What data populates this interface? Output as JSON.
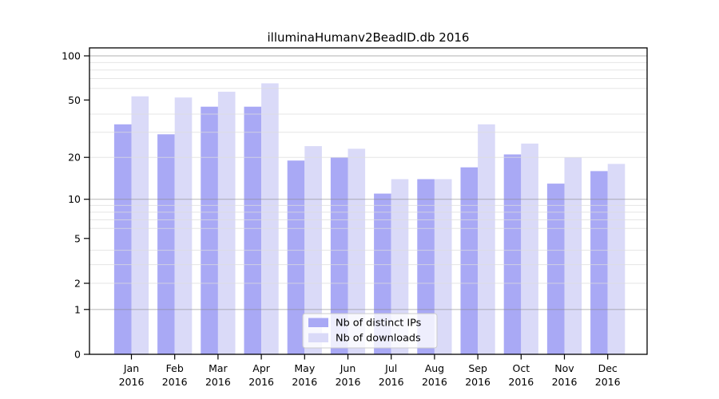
{
  "chart_data": {
    "type": "bar",
    "title": "illuminaHumanv2BeadID.db 2016",
    "x_ticks": [
      {
        "month": "Jan",
        "year": "2016"
      },
      {
        "month": "Feb",
        "year": "2016"
      },
      {
        "month": "Mar",
        "year": "2016"
      },
      {
        "month": "Apr",
        "year": "2016"
      },
      {
        "month": "May",
        "year": "2016"
      },
      {
        "month": "Jun",
        "year": "2016"
      },
      {
        "month": "Jul",
        "year": "2016"
      },
      {
        "month": "Aug",
        "year": "2016"
      },
      {
        "month": "Sep",
        "year": "2016"
      },
      {
        "month": "Oct",
        "year": "2016"
      },
      {
        "month": "Nov",
        "year": "2016"
      },
      {
        "month": "Dec",
        "year": "2016"
      }
    ],
    "series": [
      {
        "name": "Nb of distinct IPs",
        "color": "#a9a9f5",
        "values": [
          34,
          29,
          45,
          45,
          19,
          20,
          11,
          14,
          17,
          21,
          13,
          16
        ]
      },
      {
        "name": "Nb of downloads",
        "color": "#dadaf8",
        "values": [
          53,
          52,
          57,
          65,
          24,
          23,
          14,
          14,
          34,
          25,
          20,
          18
        ]
      }
    ],
    "y_axis": {
      "scale": "log1p",
      "tick_labels": [
        "0",
        "1",
        "2",
        "5",
        "10",
        "20",
        "50",
        "100"
      ],
      "major_grid": [
        1,
        10,
        100
      ],
      "minor_grid": [
        2,
        3,
        4,
        6,
        7,
        8,
        9,
        20,
        30,
        40,
        60,
        70,
        80,
        90
      ],
      "range_top": 113
    },
    "legend": {
      "position": "lower center inside"
    },
    "grid": "on",
    "background": "#ffffff",
    "colors": {
      "frame": "#000000",
      "major_grid": "#8c8c8c",
      "minor_grid": "#dcdcdc",
      "legend_border": "#cccccc"
    }
  }
}
